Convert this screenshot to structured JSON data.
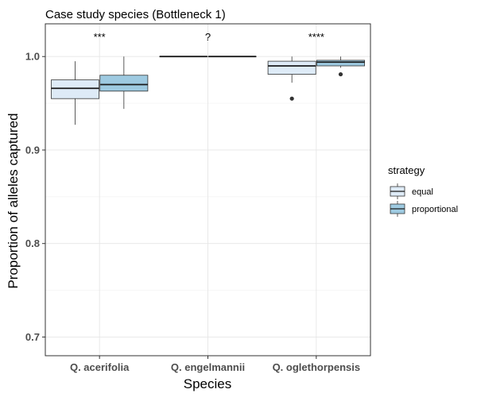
{
  "chart_data": {
    "type": "boxplot",
    "title": "Case study species (Bottleneck 1)",
    "xlabel": "Species",
    "ylabel": "Proportion of alleles captured",
    "ylim": [
      0.68,
      1.035
    ],
    "yticks": [
      0.7,
      0.8,
      0.9,
      1.0
    ],
    "ytick_labels": [
      "0.7",
      "0.8",
      "0.9",
      "1.0"
    ],
    "grid": true,
    "legend_position": "right",
    "legend_title": "strategy",
    "categories": [
      "Q. acerifolia",
      "Q. engelmannii",
      "Q. oglethorpensis"
    ],
    "annotations": [
      "***",
      "?",
      "****"
    ],
    "series": [
      {
        "name": "equal",
        "color": "#deebf7",
        "boxes": [
          {
            "whisker_low": 0.927,
            "q1": 0.955,
            "median": 0.966,
            "q3": 0.975,
            "whisker_high": 0.995,
            "outliers": []
          },
          {
            "whisker_low": 1.0,
            "q1": 1.0,
            "median": 1.0,
            "q3": 1.0,
            "whisker_high": 1.0,
            "outliers": []
          },
          {
            "whisker_low": 0.972,
            "q1": 0.981,
            "median": 0.99,
            "q3": 0.995,
            "whisker_high": 1.0,
            "outliers": [
              0.955
            ]
          }
        ]
      },
      {
        "name": "proportional",
        "color": "#9ecae1",
        "boxes": [
          {
            "whisker_low": 0.944,
            "q1": 0.963,
            "median": 0.97,
            "q3": 0.98,
            "whisker_high": 1.0,
            "outliers": []
          },
          {
            "whisker_low": 1.0,
            "q1": 1.0,
            "median": 1.0,
            "q3": 1.0,
            "whisker_high": 1.0,
            "outliers": []
          },
          {
            "whisker_low": 0.988,
            "q1": 0.99,
            "median": 0.994,
            "q3": 0.996,
            "whisker_high": 1.0,
            "outliers": [
              0.981
            ]
          }
        ]
      }
    ]
  }
}
